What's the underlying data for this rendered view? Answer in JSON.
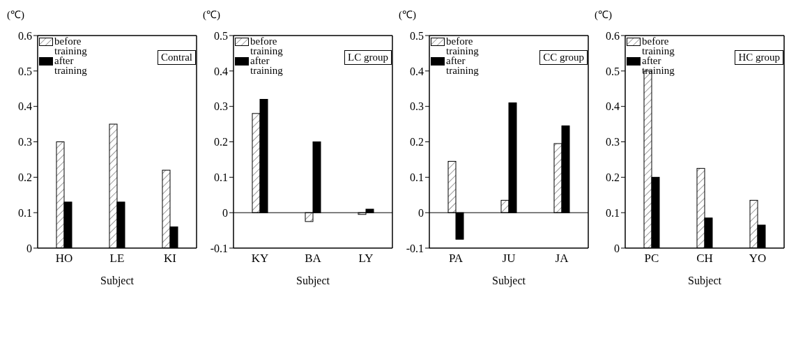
{
  "chart_data": [
    {
      "type": "bar",
      "title": "Contral",
      "ylabel": "(℃)",
      "xlabel": "Subject",
      "categories": [
        "HO",
        "LE",
        "KI"
      ],
      "series": [
        {
          "name": "before training",
          "color": "#ffffff",
          "values": [
            0.3,
            0.35,
            0.22
          ]
        },
        {
          "name": "after training",
          "color": "#000000",
          "values": [
            0.13,
            0.13,
            0.06
          ]
        }
      ],
      "ylim": [
        0,
        0.6
      ],
      "yticks": [
        0,
        0.1,
        0.2,
        0.3,
        0.4,
        0.5,
        0.6
      ],
      "grid": false,
      "legend": "top left"
    },
    {
      "type": "bar",
      "title": "LC group",
      "ylabel": "(℃)",
      "xlabel": "Subject",
      "categories": [
        "KY",
        "BA",
        "LY"
      ],
      "series": [
        {
          "name": "before training",
          "color": "#ffffff",
          "values": [
            0.28,
            -0.025,
            -0.005
          ]
        },
        {
          "name": "after training",
          "color": "#000000",
          "values": [
            0.32,
            0.2,
            0.01
          ]
        }
      ],
      "ylim": [
        -0.1,
        0.5
      ],
      "yticks": [
        -0.1,
        0,
        0.1,
        0.2,
        0.3,
        0.4,
        0.5
      ],
      "grid": false,
      "legend": "top left",
      "ref_lines": [
        {
          "axis": "y",
          "value": 0,
          "color": "#000000"
        }
      ]
    },
    {
      "type": "bar",
      "title": "CC group",
      "ylabel": "(℃)",
      "xlabel": "Subject",
      "categories": [
        "PA",
        "JU",
        "JA"
      ],
      "series": [
        {
          "name": "before training",
          "color": "#ffffff",
          "values": [
            0.145,
            0.035,
            0.195
          ]
        },
        {
          "name": "after training",
          "color": "#000000",
          "values": [
            -0.075,
            0.31,
            0.245
          ]
        }
      ],
      "ylim": [
        -0.1,
        0.5
      ],
      "yticks": [
        -0.1,
        0,
        0.1,
        0.2,
        0.3,
        0.4,
        0.5
      ],
      "grid": false,
      "legend": "top left",
      "ref_lines": [
        {
          "axis": "y",
          "value": 0,
          "color": "#000000"
        }
      ]
    },
    {
      "type": "bar",
      "title": "HC group",
      "ylabel": "(℃)",
      "xlabel": "Subject",
      "categories": [
        "PC",
        "CH",
        "YO"
      ],
      "series": [
        {
          "name": "before training",
          "color": "#ffffff",
          "values": [
            0.5,
            0.225,
            0.135
          ]
        },
        {
          "name": "after training",
          "color": "#000000",
          "values": [
            0.2,
            0.085,
            0.065
          ]
        }
      ],
      "ylim": [
        0,
        0.6
      ],
      "yticks": [
        0,
        0.1,
        0.2,
        0.3,
        0.4,
        0.5,
        0.6
      ],
      "grid": false,
      "legend": "top left"
    }
  ]
}
